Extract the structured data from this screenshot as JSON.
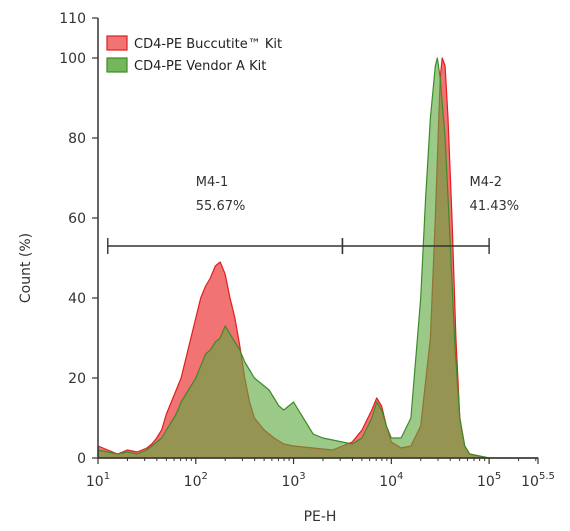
{
  "chart_data": {
    "type": "area",
    "title": "",
    "xlabel": "PE-H",
    "ylabel": "Count (%)",
    "x_scale": "log",
    "xlim": [
      1,
      5.5
    ],
    "ylim": [
      0,
      110
    ],
    "x_ticks": [
      {
        "pos": 1,
        "base": "10",
        "exp": "1"
      },
      {
        "pos": 2,
        "base": "10",
        "exp": "2"
      },
      {
        "pos": 3,
        "base": "10",
        "exp": "3"
      },
      {
        "pos": 4,
        "base": "10",
        "exp": "4"
      },
      {
        "pos": 5,
        "base": "10",
        "exp": "5"
      },
      {
        "pos": 5.5,
        "base": "10",
        "exp": "5.5"
      }
    ],
    "y_ticks": [
      0,
      20,
      40,
      60,
      80,
      100,
      110
    ],
    "legend_position": "top-left",
    "series": [
      {
        "name": "CD4-PE Buccutite™ Kit",
        "fill": "#ef5a5a",
        "stroke": "#e01e1e",
        "points": [
          [
            1.0,
            3
          ],
          [
            1.1,
            2
          ],
          [
            1.2,
            1
          ],
          [
            1.3,
            2
          ],
          [
            1.4,
            1.5
          ],
          [
            1.5,
            2.5
          ],
          [
            1.55,
            3.5
          ],
          [
            1.6,
            5
          ],
          [
            1.65,
            7
          ],
          [
            1.7,
            11
          ],
          [
            1.75,
            14
          ],
          [
            1.8,
            17
          ],
          [
            1.85,
            20
          ],
          [
            1.9,
            25
          ],
          [
            1.95,
            30
          ],
          [
            2.0,
            35
          ],
          [
            2.05,
            40
          ],
          [
            2.1,
            43
          ],
          [
            2.15,
            45
          ],
          [
            2.2,
            48
          ],
          [
            2.25,
            49
          ],
          [
            2.3,
            46
          ],
          [
            2.35,
            40
          ],
          [
            2.4,
            35
          ],
          [
            2.45,
            28
          ],
          [
            2.5,
            20
          ],
          [
            2.55,
            14
          ],
          [
            2.6,
            10
          ],
          [
            2.7,
            7
          ],
          [
            2.8,
            5
          ],
          [
            2.9,
            3.5
          ],
          [
            3.0,
            3
          ],
          [
            3.2,
            2.5
          ],
          [
            3.4,
            2
          ],
          [
            3.6,
            4
          ],
          [
            3.7,
            7
          ],
          [
            3.8,
            12
          ],
          [
            3.85,
            15
          ],
          [
            3.9,
            13
          ],
          [
            3.95,
            8
          ],
          [
            4.0,
            4
          ],
          [
            4.1,
            2.5
          ],
          [
            4.2,
            3
          ],
          [
            4.3,
            8
          ],
          [
            4.4,
            30
          ],
          [
            4.45,
            60
          ],
          [
            4.5,
            95
          ],
          [
            4.52,
            100
          ],
          [
            4.55,
            98
          ],
          [
            4.58,
            85
          ],
          [
            4.62,
            60
          ],
          [
            4.66,
            30
          ],
          [
            4.7,
            10
          ],
          [
            4.75,
            3
          ],
          [
            4.8,
            1
          ],
          [
            4.9,
            0.5
          ],
          [
            5.0,
            0
          ],
          [
            5.5,
            0
          ]
        ]
      },
      {
        "name": "CD4-PE Vendor A Kit",
        "fill": "#5da83f",
        "stroke": "#3f8a28",
        "points": [
          [
            1.0,
            2
          ],
          [
            1.1,
            1.5
          ],
          [
            1.2,
            1
          ],
          [
            1.3,
            1.5
          ],
          [
            1.4,
            1
          ],
          [
            1.5,
            2
          ],
          [
            1.55,
            3
          ],
          [
            1.6,
            4
          ],
          [
            1.65,
            5
          ],
          [
            1.7,
            7
          ],
          [
            1.75,
            9
          ],
          [
            1.8,
            11
          ],
          [
            1.85,
            14
          ],
          [
            1.9,
            16
          ],
          [
            1.95,
            18
          ],
          [
            2.0,
            20
          ],
          [
            2.05,
            23
          ],
          [
            2.1,
            26
          ],
          [
            2.15,
            27
          ],
          [
            2.2,
            29
          ],
          [
            2.25,
            30
          ],
          [
            2.3,
            33
          ],
          [
            2.35,
            31
          ],
          [
            2.4,
            29
          ],
          [
            2.45,
            27
          ],
          [
            2.5,
            24
          ],
          [
            2.55,
            22
          ],
          [
            2.6,
            20
          ],
          [
            2.65,
            19
          ],
          [
            2.7,
            18
          ],
          [
            2.75,
            17
          ],
          [
            2.8,
            15
          ],
          [
            2.85,
            13
          ],
          [
            2.9,
            12
          ],
          [
            2.95,
            13
          ],
          [
            3.0,
            14
          ],
          [
            3.05,
            12
          ],
          [
            3.1,
            10
          ],
          [
            3.15,
            8
          ],
          [
            3.2,
            6
          ],
          [
            3.3,
            5
          ],
          [
            3.4,
            4.5
          ],
          [
            3.5,
            4
          ],
          [
            3.6,
            3.5
          ],
          [
            3.7,
            5
          ],
          [
            3.8,
            10
          ],
          [
            3.85,
            14
          ],
          [
            3.9,
            12
          ],
          [
            3.95,
            8
          ],
          [
            4.0,
            5
          ],
          [
            4.1,
            5
          ],
          [
            4.2,
            10
          ],
          [
            4.3,
            40
          ],
          [
            4.35,
            65
          ],
          [
            4.4,
            85
          ],
          [
            4.45,
            98
          ],
          [
            4.47,
            100
          ],
          [
            4.5,
            95
          ],
          [
            4.55,
            80
          ],
          [
            4.6,
            55
          ],
          [
            4.65,
            28
          ],
          [
            4.7,
            10
          ],
          [
            4.75,
            3
          ],
          [
            4.8,
            1
          ],
          [
            4.9,
            0.5
          ],
          [
            5.0,
            0
          ],
          [
            5.5,
            0
          ]
        ]
      }
    ],
    "markers": [
      {
        "label": "M4-1",
        "percent": "55.67%",
        "x_start": 1.1,
        "x_end": 3.5,
        "y": 53
      },
      {
        "label": "M4-2",
        "percent": "41.43%",
        "x_start": 3.5,
        "x_end": 5.0,
        "y": 53
      }
    ]
  }
}
